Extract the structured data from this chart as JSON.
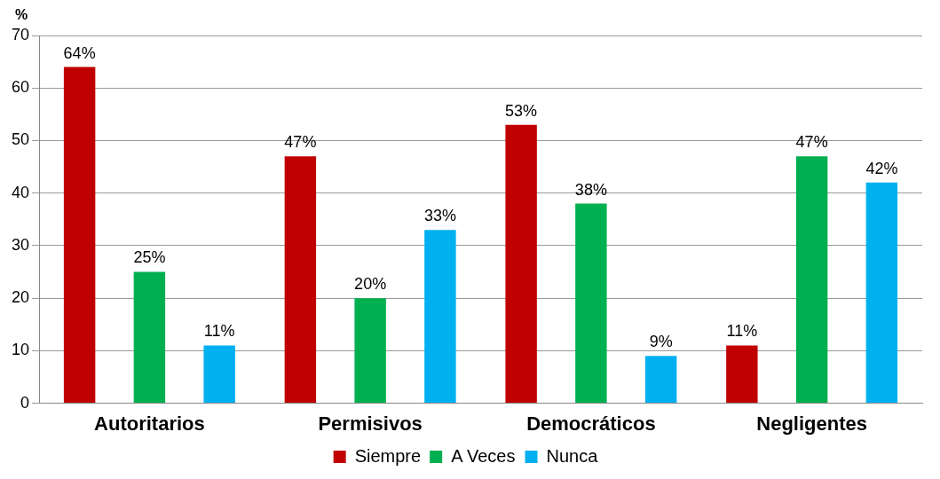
{
  "chart_data": {
    "type": "bar",
    "ylabel": "%",
    "categories": [
      "Autoritarios",
      "Permisivos",
      "Democráticos",
      "Negligentes"
    ],
    "series": [
      {
        "name": "Siempre",
        "color": "#c00000",
        "values": [
          64,
          47,
          53,
          11
        ],
        "value_labels": [
          "64%",
          "47%",
          "53%",
          "11%"
        ]
      },
      {
        "name": "A Veces",
        "color": "#00b050",
        "values": [
          25,
          20,
          38,
          47
        ],
        "value_labels": [
          "25%",
          "20%",
          "38%",
          "47%"
        ]
      },
      {
        "name": "Nunca",
        "color": "#00b0f0",
        "values": [
          11,
          33,
          9,
          42
        ],
        "value_labels": [
          "11%",
          "33%",
          "9%",
          "42%"
        ]
      }
    ],
    "ylim": [
      0,
      70
    ],
    "yticks": [
      0,
      10,
      20,
      30,
      40,
      50,
      60,
      70
    ],
    "grid": "y",
    "legend": "bottom"
  }
}
